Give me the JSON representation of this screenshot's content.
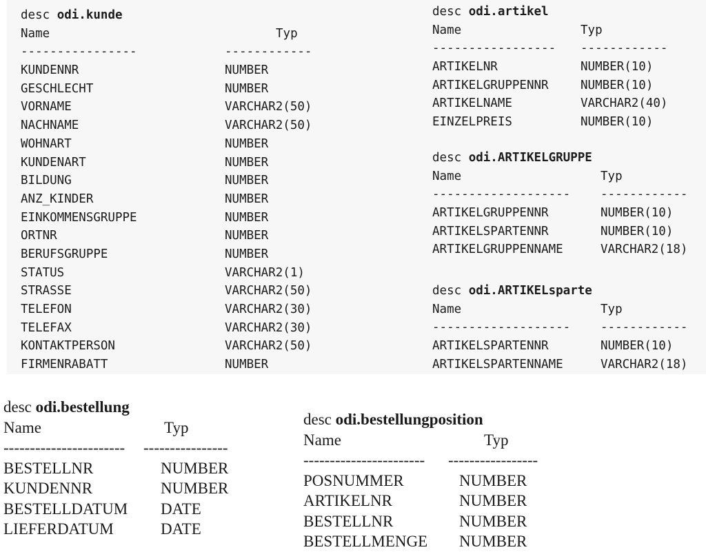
{
  "tables": {
    "kunde": {
      "keyword": "desc",
      "table": "odi.kunde",
      "name_header": "Name",
      "type_header": "Typ",
      "name_rule": "----------------",
      "type_rule": "------------",
      "rows": [
        {
          "name": "KUNDENNR",
          "type": "NUMBER"
        },
        {
          "name": "GESCHLECHT",
          "type": "NUMBER"
        },
        {
          "name": "VORNAME",
          "type": "VARCHAR2(50)"
        },
        {
          "name": "NACHNAME",
          "type": "VARCHAR2(50)"
        },
        {
          "name": "WOHNART",
          "type": "NUMBER"
        },
        {
          "name": "KUNDENART",
          "type": "NUMBER"
        },
        {
          "name": "BILDUNG",
          "type": "NUMBER"
        },
        {
          "name": "ANZ_KINDER",
          "type": "NUMBER"
        },
        {
          "name": "EINKOMMENSGRUPPE",
          "type": "NUMBER"
        },
        {
          "name": "ORTNR",
          "type": "NUMBER"
        },
        {
          "name": "BERUFSGRUPPE",
          "type": "NUMBER"
        },
        {
          "name": "STATUS",
          "type": "VARCHAR2(1)"
        },
        {
          "name": "STRASSE",
          "type": "VARCHAR2(50)"
        },
        {
          "name": "TELEFON",
          "type": "VARCHAR2(30)"
        },
        {
          "name": "TELEFAX",
          "type": "VARCHAR2(30)"
        },
        {
          "name": "KONTAKTPERSON",
          "type": "VARCHAR2(50)"
        },
        {
          "name": "FIRMENRABATT",
          "type": "NUMBER"
        }
      ]
    },
    "artikel": {
      "keyword": "desc",
      "table": "odi.artikel",
      "name_header": "Name",
      "type_header": "Typ",
      "name_rule": "-----------------",
      "type_rule": "------------",
      "rows": [
        {
          "name": "ARTIKELNR",
          "type": "NUMBER(10)"
        },
        {
          "name": "ARTIKELGRUPPENNR",
          "type": "NUMBER(10)"
        },
        {
          "name": "ARTIKELNAME",
          "type": "VARCHAR2(40)"
        },
        {
          "name": "EINZELPREIS",
          "type": "NUMBER(10)"
        }
      ]
    },
    "artikelgruppe": {
      "keyword": "desc",
      "table": "odi.ARTIKELGRUPPE",
      "name_header": "Name",
      "type_header": "Typ",
      "name_rule": "-------------------",
      "type_rule": "------------",
      "rows": [
        {
          "name": "ARTIKELGRUPPENNR",
          "type": "NUMBER(10)"
        },
        {
          "name": "ARTIKELSPARTENNR",
          "type": "NUMBER(10)"
        },
        {
          "name": "ARTIKELGRUPPENNAME",
          "type": "VARCHAR2(18)"
        }
      ]
    },
    "artikelsparte": {
      "keyword": "desc",
      "table": "odi.ARTIKELsparte",
      "name_header": "Name",
      "type_header": "Typ",
      "name_rule": "-------------------",
      "type_rule": "------------",
      "rows": [
        {
          "name": "ARTIKELSPARTENNR",
          "type": "NUMBER(10)"
        },
        {
          "name": "ARTIKELSPARTENNAME",
          "type": "VARCHAR2(18)"
        }
      ]
    },
    "bestellung": {
      "keyword": "desc",
      "table": "odi.bestellung",
      "name_header": "Name",
      "type_header": "Typ",
      "name_rule": "-----------------------",
      "type_rule": "----------------",
      "rows": [
        {
          "name": "BESTELLNR",
          "type": "NUMBER"
        },
        {
          "name": "KUNDENNR",
          "type": "NUMBER"
        },
        {
          "name": "BESTELLDATUM",
          "type": "DATE"
        },
        {
          "name": "LIEFERDATUM",
          "type": "DATE"
        }
      ]
    },
    "bestellungposition": {
      "keyword": "desc",
      "table": "odi.bestellungposition",
      "name_header": "Name",
      "type_header": "Typ",
      "name_rule": "-----------------------",
      "type_rule": "-----------------",
      "rows": [
        {
          "name": "POSNUMMER",
          "type": "NUMBER"
        },
        {
          "name": "ARTIKELNR",
          "type": "NUMBER"
        },
        {
          "name": "BESTELLNR",
          "type": "NUMBER"
        },
        {
          "name": "BESTELLMENGE",
          "type": "NUMBER"
        }
      ]
    }
  }
}
